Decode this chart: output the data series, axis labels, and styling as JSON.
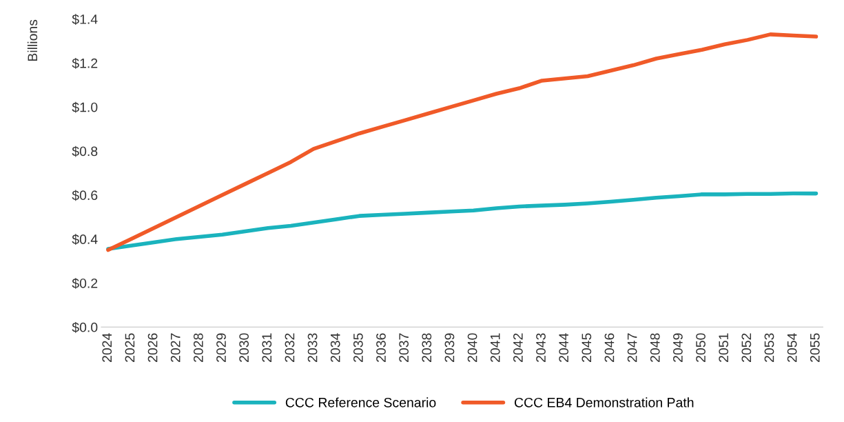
{
  "chart_data": {
    "type": "line",
    "ylabel": "Billions",
    "categories": [
      "2024",
      "2025",
      "2026",
      "2027",
      "2028",
      "2029",
      "2030",
      "2031",
      "2032",
      "2033",
      "2034",
      "2035",
      "2036",
      "2037",
      "2038",
      "2039",
      "2040",
      "2041",
      "2042",
      "2043",
      "2044",
      "2045",
      "2046",
      "2047",
      "2048",
      "2049",
      "2050",
      "2051",
      "2052",
      "2053",
      "2054",
      "2055"
    ],
    "series": [
      {
        "name": "CCC Reference Scenario",
        "color": "#1ab3bd",
        "values": [
          0.355,
          0.37,
          0.385,
          0.4,
          0.41,
          0.42,
          0.435,
          0.45,
          0.46,
          0.475,
          0.49,
          0.505,
          0.51,
          0.515,
          0.52,
          0.525,
          0.53,
          0.54,
          0.548,
          0.552,
          0.556,
          0.562,
          0.57,
          0.578,
          0.588,
          0.595,
          0.603,
          0.603,
          0.605,
          0.605,
          0.607,
          0.607
        ]
      },
      {
        "name": "CCC EB4 Demonstration Path",
        "color": "#f05a28",
        "values": [
          0.35,
          0.4,
          0.45,
          0.5,
          0.55,
          0.6,
          0.65,
          0.7,
          0.75,
          0.81,
          0.845,
          0.88,
          0.91,
          0.94,
          0.97,
          1.0,
          1.03,
          1.06,
          1.085,
          1.12,
          1.13,
          1.14,
          1.165,
          1.19,
          1.22,
          1.24,
          1.26,
          1.285,
          1.305,
          1.33,
          1.325,
          1.32
        ]
      }
    ],
    "ylim": [
      0,
      1.4
    ],
    "yticks": [
      {
        "value": 0,
        "label": "$0.0"
      },
      {
        "value": 0.2,
        "label": "$0.2"
      },
      {
        "value": 0.4,
        "label": "$0.4"
      },
      {
        "value": 0.6,
        "label": "$0.6"
      },
      {
        "value": 0.8,
        "label": "$0.8"
      },
      {
        "value": 1.0,
        "label": "$1.0"
      },
      {
        "value": 1.2,
        "label": "$1.2"
      },
      {
        "value": 1.4,
        "label": "$1.4"
      }
    ],
    "grid": false,
    "legend": "bottom",
    "marker": "none",
    "line_style": "solid"
  }
}
